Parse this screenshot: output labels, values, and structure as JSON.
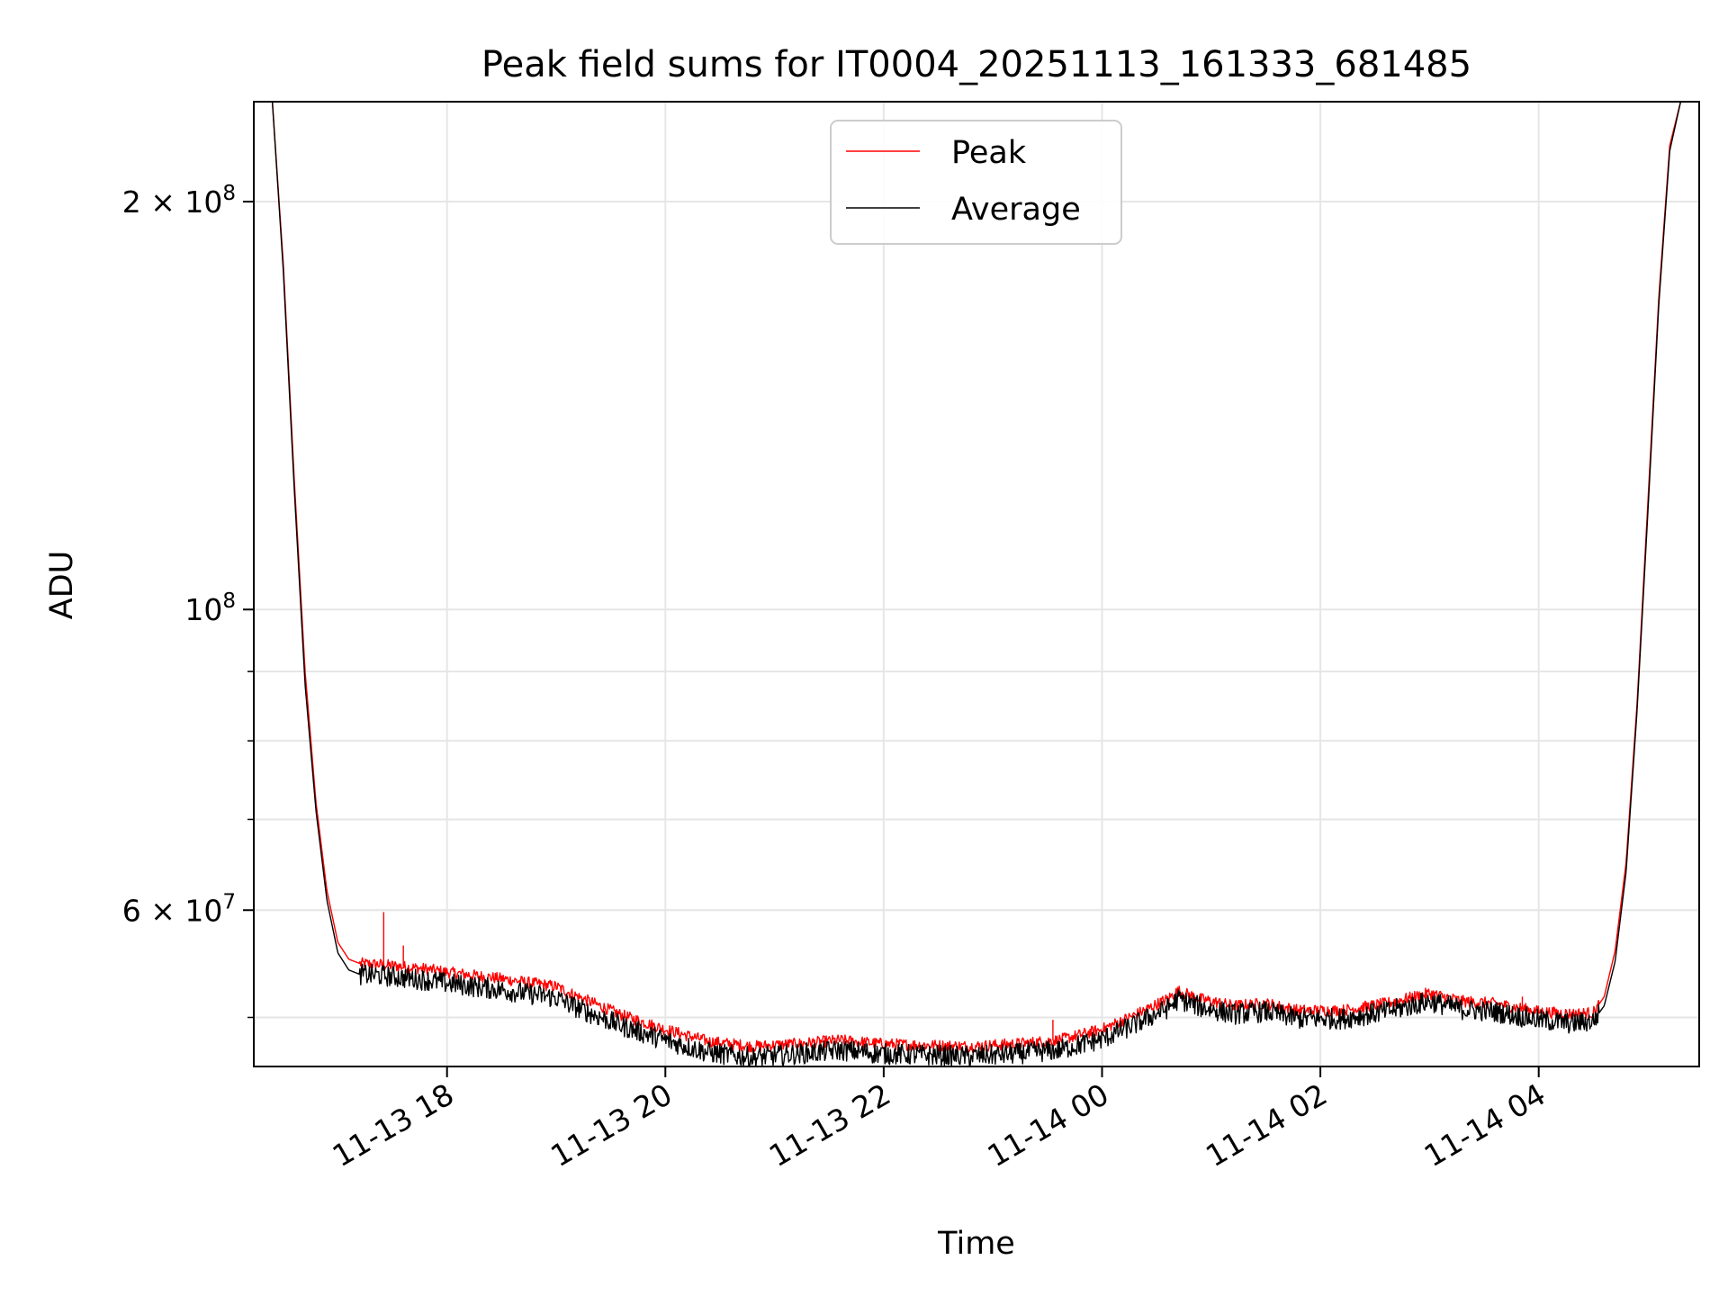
{
  "chart_data": {
    "type": "line",
    "title": "Peak field sums for IT0004_20251113_161333_681485",
    "xlabel": "Time",
    "ylabel": "ADU",
    "yscale": "log",
    "xlim_hours": [
      16.23,
      29.47
    ],
    "ylim": [
      46000000,
      237000000
    ],
    "grid": true,
    "legend_position": "upper center",
    "x_ticks": [
      {
        "hour": 18,
        "label": "11-13 18"
      },
      {
        "hour": 20,
        "label": "11-13 20"
      },
      {
        "hour": 22,
        "label": "11-13 22"
      },
      {
        "hour": 24,
        "label": "11-14 00"
      },
      {
        "hour": 26,
        "label": "11-14 02"
      },
      {
        "hour": 28,
        "label": "11-14 04"
      }
    ],
    "y_major_ticks": [
      {
        "value": 60000000,
        "mantissa": "6",
        "exponent": "7"
      },
      {
        "value": 100000000,
        "mantissa": "",
        "exponent": "8"
      },
      {
        "value": 200000000,
        "mantissa": "2",
        "exponent": "8"
      }
    ],
    "y_tick_base": "10",
    "y_tick_times": "×",
    "y_minor_ticks": [
      50000000,
      60000000,
      70000000,
      80000000,
      90000000,
      200000000
    ],
    "series": [
      {
        "name": "Peak",
        "color": "#ff0000",
        "x_hours": [
          16.4,
          16.5,
          16.6,
          16.7,
          16.8,
          16.9,
          17.0,
          17.1,
          17.2,
          17.4,
          17.6,
          17.8,
          18.0,
          18.5,
          19.0,
          19.2,
          19.6,
          20.0,
          20.4,
          20.8,
          21.2,
          21.6,
          22.0,
          22.4,
          22.8,
          23.2,
          23.6,
          24.0,
          24.3,
          24.6,
          24.7,
          24.9,
          25.2,
          25.5,
          25.8,
          26.2,
          26.6,
          27.0,
          27.3,
          27.6,
          28.0,
          28.3,
          28.5,
          28.6,
          28.7,
          28.8,
          28.9,
          29.0,
          29.1,
          29.2,
          29.3
        ],
        "values": [
          237000000,
          180000000,
          125000000,
          90000000,
          72000000,
          62000000,
          56800000,
          55200000,
          54800000,
          54700000,
          54500000,
          54300000,
          54000000,
          53400000,
          52700000,
          51800000,
          50200000,
          49000000,
          48000000,
          47600000,
          47800000,
          48100000,
          47800000,
          47700000,
          47600000,
          47800000,
          48100000,
          49000000,
          50200000,
          51600000,
          52300000,
          51600000,
          51000000,
          51200000,
          50600000,
          50600000,
          51200000,
          52100000,
          51400000,
          51200000,
          50500000,
          50300000,
          50400000,
          51800000,
          56000000,
          65000000,
          85000000,
          120000000,
          170000000,
          220000000,
          237000000
        ]
      },
      {
        "name": "Average",
        "color": "#000000",
        "x_hours": [
          16.4,
          16.5,
          16.6,
          16.7,
          16.8,
          16.9,
          17.0,
          17.1,
          17.2,
          17.4,
          17.6,
          17.8,
          18.0,
          18.5,
          19.0,
          19.2,
          19.6,
          20.0,
          20.4,
          20.8,
          21.2,
          21.6,
          22.0,
          22.4,
          22.8,
          23.2,
          23.6,
          24.0,
          24.3,
          24.6,
          24.7,
          24.9,
          25.2,
          25.5,
          25.8,
          26.2,
          26.6,
          27.0,
          27.3,
          27.6,
          28.0,
          28.3,
          28.5,
          28.6,
          28.7,
          28.8,
          28.9,
          29.0,
          29.1,
          29.2,
          29.3
        ],
        "values": [
          237000000,
          178000000,
          123000000,
          88000000,
          71000000,
          61000000,
          55800000,
          54200000,
          53800000,
          53700000,
          53500000,
          53300000,
          53000000,
          52400000,
          51700000,
          50800000,
          49300000,
          48100000,
          47100000,
          46700000,
          47000000,
          47300000,
          47000000,
          46900000,
          46800000,
          47000000,
          47300000,
          48200000,
          49400000,
          50800000,
          51600000,
          50900000,
          50300000,
          50500000,
          49900000,
          49900000,
          50500000,
          51400000,
          50700000,
          50500000,
          49800000,
          49500000,
          49700000,
          51000000,
          55000000,
          64000000,
          84000000,
          118000000,
          168000000,
          218000000,
          237000000
        ]
      }
    ]
  }
}
